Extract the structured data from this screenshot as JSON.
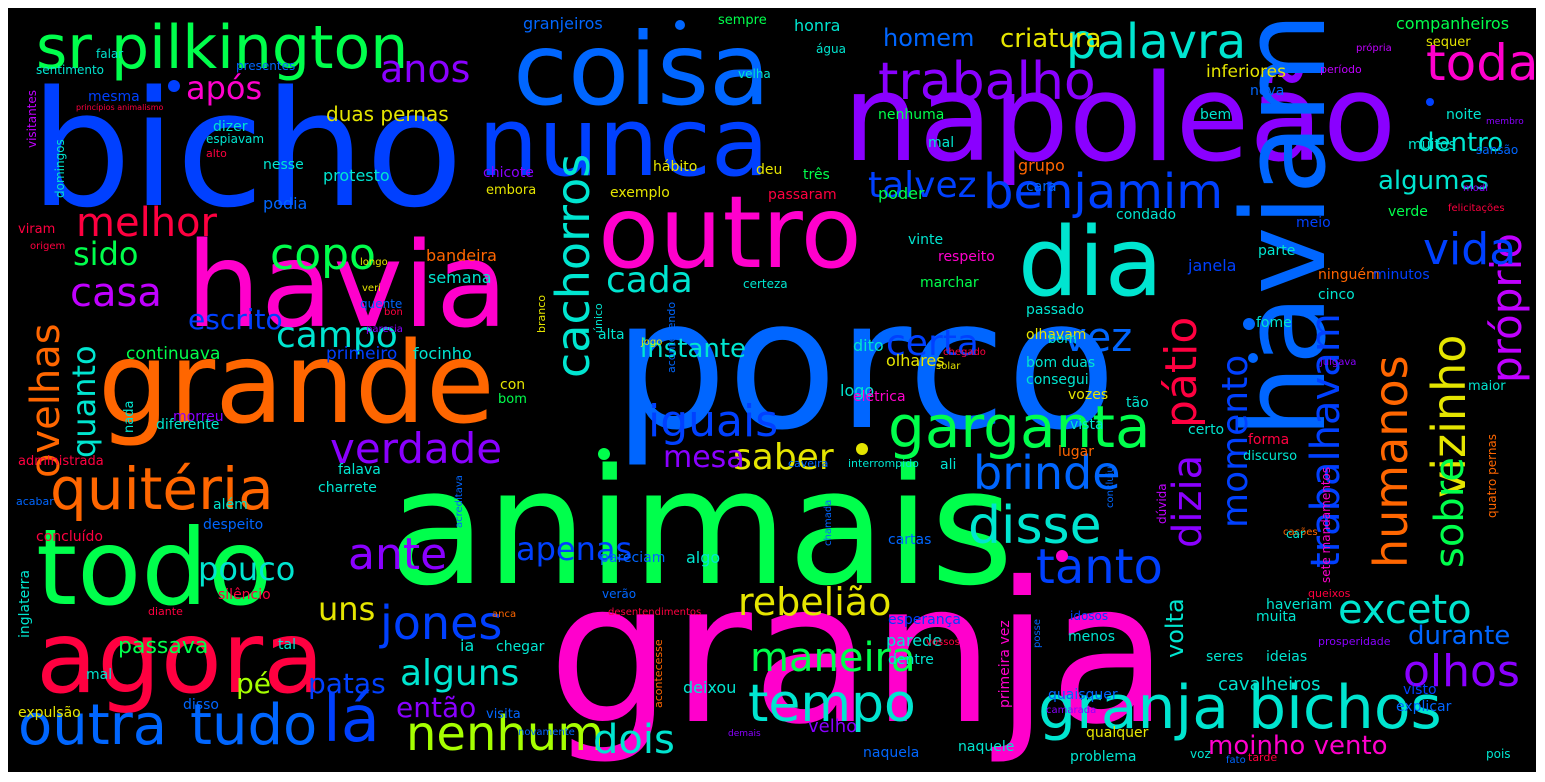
{
  "palette": {
    "magenta": "#ff00cc",
    "violet": "#8a00ff",
    "blue": "#0040ff",
    "azure": "#0066ff",
    "cyan": "#00e5d0",
    "green": "#00ff4c",
    "lime": "#a6ff00",
    "yellow": "#e5e500",
    "orange": "#ff6600",
    "red": "#ff0040",
    "purple": "#c000ff"
  },
  "words": [
    {
      "text": "granja",
      "color": "#ff00cc"
    },
    {
      "text": "porco",
      "color": "#0066ff"
    },
    {
      "text": "animais",
      "color": "#00ff4c"
    },
    {
      "text": "bicho",
      "color": "#0040ff"
    },
    {
      "text": "napoleão",
      "color": "#8a00ff"
    },
    {
      "text": "haviam",
      "color": "#0066ff"
    },
    {
      "text": "havia",
      "color": "#ff00cc"
    },
    {
      "text": "grande",
      "color": "#ff6600"
    },
    {
      "text": "coisa",
      "color": "#0066ff"
    },
    {
      "text": "nunca",
      "color": "#0040ff"
    },
    {
      "text": "outro",
      "color": "#ff00cc"
    },
    {
      "text": "dia",
      "color": "#00e5d0"
    },
    {
      "text": "todo",
      "color": "#00ff4c"
    },
    {
      "text": "agora",
      "color": "#ff0040"
    },
    {
      "text": "granja bichos",
      "color": "#00e5d0"
    },
    {
      "text": "sr pilkington",
      "color": "#00ff4c"
    },
    {
      "text": "garganta",
      "color": "#00ff4c"
    },
    {
      "text": "quitéria",
      "color": "#ff6600"
    },
    {
      "text": "trabalho",
      "color": "#8a00ff"
    },
    {
      "text": "benjamim",
      "color": "#0040ff"
    },
    {
      "text": "verdade",
      "color": "#8a00ff"
    },
    {
      "text": "palavra",
      "color": "#00e5d0"
    },
    {
      "text": "toda",
      "color": "#ff00cc"
    },
    {
      "text": "outra",
      "color": "#0066ff"
    },
    {
      "text": "tudo",
      "color": "#0066ff"
    },
    {
      "text": "tempo",
      "color": "#00e5d0"
    },
    {
      "text": "nenhum",
      "color": "#a6ff00"
    },
    {
      "text": "disse",
      "color": "#00e5d0"
    },
    {
      "text": "tanto",
      "color": "#0040ff"
    },
    {
      "text": "brinde",
      "color": "#0066ff"
    },
    {
      "text": "cachorros",
      "color": "#00e5d0"
    },
    {
      "text": "humanos",
      "color": "#ff6600"
    },
    {
      "text": "vizinho",
      "color": "#e5e500"
    },
    {
      "text": "próprio",
      "color": "#c000ff"
    },
    {
      "text": "pátio",
      "color": "#ff0040"
    },
    {
      "text": "momento",
      "color": "#0040ff"
    },
    {
      "text": "dizia",
      "color": "#8a00ff"
    },
    {
      "text": "trabalhavam",
      "color": "#0040ff"
    },
    {
      "text": "sobre",
      "color": "#00ff4c"
    },
    {
      "text": "iguais",
      "color": "#0040ff"
    },
    {
      "text": "olhos",
      "color": "#8a00ff"
    },
    {
      "text": "vida",
      "color": "#0040ff"
    },
    {
      "text": "vez",
      "color": "#0066ff"
    },
    {
      "text": "certa",
      "color": "#0040ff"
    },
    {
      "text": "copo",
      "color": "#00ff4c"
    },
    {
      "text": "melhor",
      "color": "#ff0040"
    },
    {
      "text": "casa",
      "color": "#c000ff"
    },
    {
      "text": "ovelhas",
      "color": "#ff6600"
    },
    {
      "text": "quanto",
      "color": "#00e5d0"
    },
    {
      "text": "sido",
      "color": "#00ff4c"
    },
    {
      "text": "campo",
      "color": "#00e5d0"
    },
    {
      "text": "cada",
      "color": "#00e5d0"
    },
    {
      "text": "talvez",
      "color": "#0040ff"
    },
    {
      "text": "anos",
      "color": "#8a00ff"
    },
    {
      "text": "após",
      "color": "#ff00cc"
    },
    {
      "text": "ante",
      "color": "#8a00ff"
    },
    {
      "text": "jones",
      "color": "#0040ff"
    },
    {
      "text": "apenas",
      "color": "#0040ff"
    },
    {
      "text": "alguns",
      "color": "#00e5d0"
    },
    {
      "text": "pouco",
      "color": "#00e5d0"
    },
    {
      "text": "uns",
      "color": "#e5e500"
    },
    {
      "text": "rebelião",
      "color": "#e5e500"
    },
    {
      "text": "saber",
      "color": "#e5e500"
    },
    {
      "text": "mesa",
      "color": "#8a00ff"
    },
    {
      "text": "maneira",
      "color": "#00ff4c"
    },
    {
      "text": "dois",
      "color": "#00e5d0"
    },
    {
      "text": "lá",
      "color": "#0040ff"
    },
    {
      "text": "exceto",
      "color": "#00e5d0"
    },
    {
      "text": "durante",
      "color": "#0066ff"
    },
    {
      "text": "instante",
      "color": "#00e5d0"
    },
    {
      "text": "escrito",
      "color": "#0040ff"
    },
    {
      "text": "homem",
      "color": "#0066ff"
    },
    {
      "text": "criatura",
      "color": "#e5e500"
    },
    {
      "text": "algumas",
      "color": "#00e5d0"
    },
    {
      "text": "dentro",
      "color": "#00e5d0"
    },
    {
      "text": "volta",
      "color": "#00e5d0"
    },
    {
      "text": "patas",
      "color": "#0040ff"
    },
    {
      "text": "pé",
      "color": "#a6ff00"
    },
    {
      "text": "então",
      "color": "#8a00ff"
    },
    {
      "text": "moinho vento",
      "color": "#ff00cc"
    },
    {
      "text": "cavalheiros",
      "color": "#00e5d0"
    },
    {
      "text": "passava",
      "color": "#00ff4c"
    },
    {
      "text": "duas pernas",
      "color": "#e5e500"
    },
    {
      "text": "companheiros",
      "color": "#00ff4c"
    },
    {
      "text": "granjeiros",
      "color": "#0066ff"
    },
    {
      "text": "sempre",
      "color": "#00ff4c"
    },
    {
      "text": "honra",
      "color": "#00e5d0"
    },
    {
      "text": "inferiores",
      "color": "#e5e500"
    },
    {
      "text": "continuava",
      "color": "#00ff4c"
    },
    {
      "text": "primeiro",
      "color": "#0040ff"
    },
    {
      "text": "focinho",
      "color": "#00e5d0"
    },
    {
      "text": "bandeira",
      "color": "#ff6600"
    },
    {
      "text": "semana",
      "color": "#00e5d0"
    },
    {
      "text": "protesto",
      "color": "#00e5d0"
    },
    {
      "text": "podia",
      "color": "#0066ff"
    },
    {
      "text": "nesse",
      "color": "#00e5d0"
    },
    {
      "text": "chicote",
      "color": "#8a00ff"
    },
    {
      "text": "exemplo",
      "color": "#e5e500"
    },
    {
      "text": "hábito",
      "color": "#e5e500"
    },
    {
      "text": "deu",
      "color": "#e5e500"
    },
    {
      "text": "três",
      "color": "#00ff4c"
    },
    {
      "text": "passaram",
      "color": "#ff0040"
    },
    {
      "text": "grupo",
      "color": "#ff6600"
    },
    {
      "text": "poder",
      "color": "#00ff4c"
    },
    {
      "text": "cara",
      "color": "#0066ff"
    },
    {
      "text": "condado",
      "color": "#00e5d0"
    },
    {
      "text": "parte",
      "color": "#00e5d0"
    },
    {
      "text": "verde",
      "color": "#00ff4c"
    },
    {
      "text": "meio",
      "color": "#0040ff"
    },
    {
      "text": "janela",
      "color": "#0040ff"
    },
    {
      "text": "passado",
      "color": "#00e5d0"
    },
    {
      "text": "olhavam",
      "color": "#e5e500"
    },
    {
      "text": "olhares",
      "color": "#e5e500"
    },
    {
      "text": "dito",
      "color": "#00e5d0"
    },
    {
      "text": "logo",
      "color": "#00e5d0"
    },
    {
      "text": "fome",
      "color": "#00e5d0"
    },
    {
      "text": "ninguém",
      "color": "#ff6600"
    },
    {
      "text": "minutos",
      "color": "#0040ff"
    },
    {
      "text": "cinco",
      "color": "#00e5d0"
    },
    {
      "text": "muitos",
      "color": "#00e5d0"
    },
    {
      "text": "noite",
      "color": "#00e5d0"
    },
    {
      "text": "bem",
      "color": "#00e5d0"
    },
    {
      "text": "nova",
      "color": "#0066ff"
    },
    {
      "text": "nenhuma",
      "color": "#00ff4c"
    },
    {
      "text": "mal",
      "color": "#00e5d0"
    },
    {
      "text": "mesma",
      "color": "#0040ff"
    },
    {
      "text": "dizer",
      "color": "#00e5d0"
    },
    {
      "text": "falar",
      "color": "#00e5d0"
    },
    {
      "text": "sentimento",
      "color": "#00e5d0"
    },
    {
      "text": "presentes",
      "color": "#0066ff"
    },
    {
      "text": "velha",
      "color": "#00e5d0"
    },
    {
      "text": "água",
      "color": "#00e5d0"
    },
    {
      "text": "sequer",
      "color": "#e5e500"
    },
    {
      "text": "período",
      "color": "#c000ff"
    },
    {
      "text": "visitantes",
      "color": "#c000ff"
    },
    {
      "text": "domingos",
      "color": "#00e5d0"
    },
    {
      "text": "espiavam",
      "color": "#00e5d0"
    },
    {
      "text": "alto",
      "color": "#ff0040"
    },
    {
      "text": "viram",
      "color": "#ff0040"
    },
    {
      "text": "origem",
      "color": "#ff0040"
    },
    {
      "text": "longo",
      "color": "#e5e500"
    },
    {
      "text": "veri",
      "color": "#e5e500"
    },
    {
      "text": "quente",
      "color": "#0066ff"
    },
    {
      "text": "bom",
      "color": "#00ff4c"
    },
    {
      "text": "parecia",
      "color": "#8a00ff"
    },
    {
      "text": "embora",
      "color": "#e5e500"
    },
    {
      "text": "alta",
      "color": "#00e5d0"
    },
    {
      "text": "certeza",
      "color": "#00e5d0"
    },
    {
      "text": "marchar",
      "color": "#00ff4c"
    },
    {
      "text": "vinte",
      "color": "#00e5d0"
    },
    {
      "text": "respeito",
      "color": "#ff00cc"
    },
    {
      "text": "bom duas",
      "color": "#00e5d0"
    },
    {
      "text": "consegui",
      "color": "#00e5d0"
    },
    {
      "text": "vozes",
      "color": "#e5e500"
    },
    {
      "text": "tão",
      "color": "#00e5d0"
    },
    {
      "text": "maior",
      "color": "#00e5d0"
    },
    {
      "text": "julgava",
      "color": "#8a00ff"
    },
    {
      "text": "sansão",
      "color": "#0066ff"
    },
    {
      "text": "modi",
      "color": "#8a00ff"
    },
    {
      "text": "felicitações",
      "color": "#ff0040"
    },
    {
      "text": "sete mandamentos",
      "color": "#ff00cc"
    },
    {
      "text": "quatro pernas",
      "color": "#ff6600"
    },
    {
      "text": "acontecendo",
      "color": "#0066ff"
    },
    {
      "text": "único",
      "color": "#00e5d0"
    },
    {
      "text": "branco",
      "color": "#e5e500"
    },
    {
      "text": "jogo",
      "color": "#e5e500"
    },
    {
      "text": "solar",
      "color": "#e5e500"
    },
    {
      "text": "chegado",
      "color": "#ff0040"
    },
    {
      "text": "elétrica",
      "color": "#ff00cc"
    },
    {
      "text": "lugar",
      "color": "#ff6600"
    },
    {
      "text": "vista",
      "color": "#00e5d0"
    },
    {
      "text": "certo",
      "color": "#00e5d0"
    },
    {
      "text": "discurso",
      "color": "#00e5d0"
    },
    {
      "text": "forma",
      "color": "#ff0040"
    },
    {
      "text": "morreu",
      "color": "#8a00ff"
    },
    {
      "text": "nada",
      "color": "#00e5d0"
    },
    {
      "text": "diferente",
      "color": "#00e5d0"
    },
    {
      "text": "administrada",
      "color": "#ff0040"
    },
    {
      "text": "caveira",
      "color": "#0066ff"
    },
    {
      "text": "interrompido",
      "color": "#00e5d0"
    },
    {
      "text": "ali",
      "color": "#00e5d0"
    },
    {
      "text": "acreditava",
      "color": "#0066ff"
    },
    {
      "text": "falava",
      "color": "#00e5d0"
    },
    {
      "text": "charrete",
      "color": "#00e5d0"
    },
    {
      "text": "além",
      "color": "#00e5d0"
    },
    {
      "text": "despeito",
      "color": "#0066ff"
    },
    {
      "text": "concluído",
      "color": "#ff0040"
    },
    {
      "text": "acabar",
      "color": "#0066ff"
    },
    {
      "text": "inglaterra",
      "color": "#00e5d0"
    },
    {
      "text": "silêncio",
      "color": "#ff0040"
    },
    {
      "text": "diante",
      "color": "#ff0040"
    },
    {
      "text": "tal",
      "color": "#00e5d0"
    },
    {
      "text": "ia",
      "color": "#00e5d0"
    },
    {
      "text": "chegar",
      "color": "#00e5d0"
    },
    {
      "text": "verão",
      "color": "#0066ff"
    },
    {
      "text": "pareciam",
      "color": "#0066ff"
    },
    {
      "text": "algo",
      "color": "#00e5d0"
    },
    {
      "text": "cartas",
      "color": "#0066ff"
    },
    {
      "text": "concluiu",
      "color": "#0066ff"
    },
    {
      "text": "chamada",
      "color": "#0066ff"
    },
    {
      "text": "dúvida",
      "color": "#c000ff"
    },
    {
      "text": "cações",
      "color": "#ff6600"
    },
    {
      "text": "desentendimentos",
      "color": "#ff0040"
    },
    {
      "text": "esperança",
      "color": "#0040ff"
    },
    {
      "text": "parede",
      "color": "#00e5d0"
    },
    {
      "text": "idosos",
      "color": "#0040ff"
    },
    {
      "text": "primeira vez",
      "color": "#ff00cc"
    },
    {
      "text": "dentre",
      "color": "#00e5d0"
    },
    {
      "text": "menos",
      "color": "#00e5d0"
    },
    {
      "text": "muita",
      "color": "#00e5d0"
    },
    {
      "text": "haveriam",
      "color": "#00e5d0"
    },
    {
      "text": "queixos",
      "color": "#ff0040"
    },
    {
      "text": "seres",
      "color": "#00e5d0"
    },
    {
      "text": "ideias",
      "color": "#00e5d0"
    },
    {
      "text": "prosperidade",
      "color": "#8a00ff"
    },
    {
      "text": "visto",
      "color": "#0040ff"
    },
    {
      "text": "explicar",
      "color": "#0066ff"
    },
    {
      "text": "quaisquer",
      "color": "#0066ff"
    },
    {
      "text": "deixou",
      "color": "#00e5d0"
    },
    {
      "text": "velho",
      "color": "#8a00ff"
    },
    {
      "text": "acontecesse",
      "color": "#ff6600"
    },
    {
      "text": "naquela",
      "color": "#0066ff"
    },
    {
      "text": "naquele",
      "color": "#00e5d0"
    },
    {
      "text": "visita",
      "color": "#0066ff"
    },
    {
      "text": "novamente",
      "color": "#0066ff"
    },
    {
      "text": "expulsão",
      "color": "#e5e500"
    },
    {
      "text": "disso",
      "color": "#0066ff"
    },
    {
      "text": "mal",
      "color": "#00e5d0"
    },
    {
      "text": "qualquer",
      "color": "#e5e500"
    },
    {
      "text": "problema",
      "color": "#00e5d0"
    },
    {
      "text": "voz",
      "color": "#00e5d0"
    },
    {
      "text": "fato",
      "color": "#0066ff"
    },
    {
      "text": "tarde",
      "color": "#ff0040"
    },
    {
      "text": "pois",
      "color": "#00e5d0"
    },
    {
      "text": "car",
      "color": "#00e5d0"
    },
    {
      "text": "posse",
      "color": "#0066ff"
    },
    {
      "text": "camarada",
      "color": "#8a00ff"
    },
    {
      "text": "anca",
      "color": "#ff6600"
    },
    {
      "text": "vossos",
      "color": "#ff0040"
    },
    {
      "text": "con",
      "color": "#e5e500"
    },
    {
      "text": "bom",
      "color": "#00e5d0"
    },
    {
      "text": "bon",
      "color": "#ff0040"
    },
    {
      "text": "própria",
      "color": "#c000ff"
    },
    {
      "text": "princípios animalismo",
      "color": "#ff0040"
    },
    {
      "text": "membro",
      "color": "#8a00ff"
    },
    {
      "text": "demais",
      "color": "#8a00ff"
    }
  ]
}
